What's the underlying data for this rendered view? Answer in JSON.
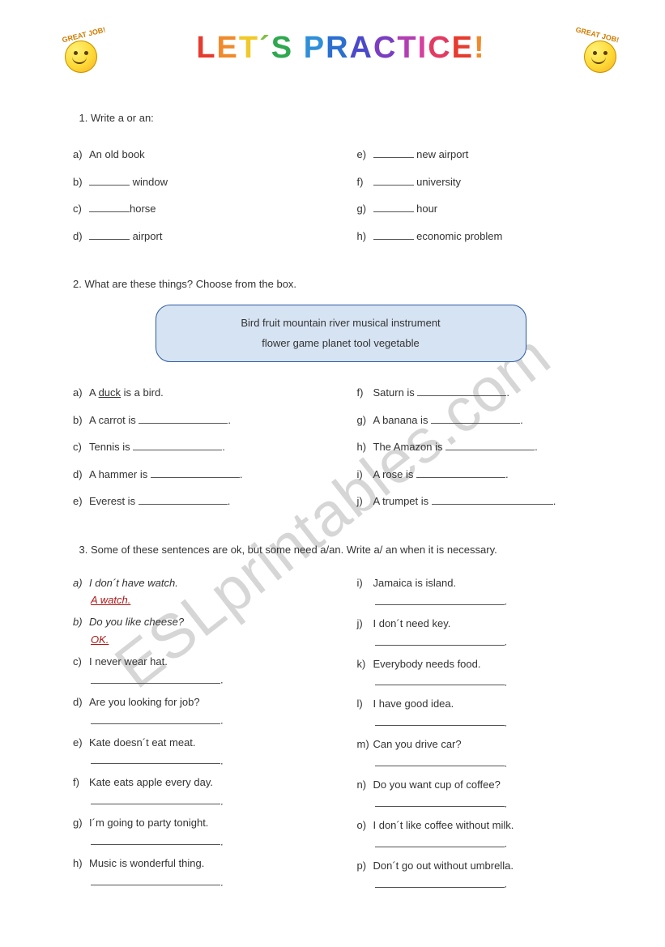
{
  "watermark": "ESLprintables.com",
  "header": {
    "badge_text": "GREAT JOB!",
    "title_chars": [
      {
        "t": "L",
        "c": "#e63b2e"
      },
      {
        "t": "E",
        "c": "#f08a2b"
      },
      {
        "t": "T",
        "c": "#f0c92b"
      },
      {
        "t": "´",
        "c": "#7fbf3f"
      },
      {
        "t": "S",
        "c": "#2fa84f"
      },
      {
        "t": " ",
        "c": "#2fa84f"
      },
      {
        "t": "P",
        "c": "#2f8fd8"
      },
      {
        "t": "R",
        "c": "#2b6fd0"
      },
      {
        "t": "A",
        "c": "#4b49c9"
      },
      {
        "t": "C",
        "c": "#7a3ec1"
      },
      {
        "t": "T",
        "c": "#b23fb2"
      },
      {
        "t": "I",
        "c": "#d63fa0"
      },
      {
        "t": "C",
        "c": "#e23b63"
      },
      {
        "t": "E",
        "c": "#e63b2e"
      },
      {
        "t": "!",
        "c": "#f08a2b"
      }
    ]
  },
  "ex1": {
    "instruction": "Write a or an:",
    "left": [
      {
        "l": "a)",
        "prefill": "An",
        "text": " old book",
        "has_prefill": true
      },
      {
        "l": "b)",
        "text": " window"
      },
      {
        "l": "c)",
        "text": "horse"
      },
      {
        "l": "d)",
        "text": " airport"
      }
    ],
    "right": [
      {
        "l": "e)",
        "text": " new airport"
      },
      {
        "l": "f)",
        "text": " university"
      },
      {
        "l": "g)",
        "text": " hour"
      },
      {
        "l": "h)",
        "text": " economic problem"
      }
    ]
  },
  "ex2": {
    "instruction": "2. What are these things?  Choose from the box.",
    "box_line1": "Bird    fruit    mountain   river    musical instrument",
    "box_line2": "flower    game    planet   tool   vegetable",
    "left": [
      {
        "l": "a)",
        "pre": "A ",
        "u": "duck",
        "post": "  is a bird."
      },
      {
        "l": "b)",
        "text": "A carrot is "
      },
      {
        "l": "c)",
        "text": "Tennis is "
      },
      {
        "l": "d)",
        "text": "A hammer is "
      },
      {
        "l": "e)",
        "text": "Everest is "
      }
    ],
    "right": [
      {
        "l": "f)",
        "text": "Saturn is "
      },
      {
        "l": "g)",
        "text": "A banana is "
      },
      {
        "l": "h)",
        "text": "The Amazon is "
      },
      {
        "l": "i)",
        "text": "A rose is "
      },
      {
        "l": "j)",
        "text": "A trumpet is "
      }
    ]
  },
  "ex3": {
    "instruction": "Some of these sentences are ok, but some need a/an. Write a/ an when it is necessary.",
    "left": [
      {
        "l": "a)",
        "q": "I don´t have watch.",
        "a": "A watch.",
        "italic": true
      },
      {
        "l": "b)",
        "q": "Do you like cheese?",
        "a": "OK.",
        "italic": true
      },
      {
        "l": "c)",
        "q": "I never wear hat."
      },
      {
        "l": "d)",
        "q": "Are you looking for job?"
      },
      {
        "l": "e)",
        "q": "Kate doesn´t eat meat."
      },
      {
        "l": "f)",
        "q": "Kate eats apple every day."
      },
      {
        "l": "g)",
        "q": "I´m going to party tonight."
      },
      {
        "l": "h)",
        "q": "Music is wonderful thing."
      }
    ],
    "right": [
      {
        "l": "i)",
        "q": "Jamaica is island."
      },
      {
        "l": "j)",
        "q": "I don´t need key."
      },
      {
        "l": "k)",
        "q": "Everybody needs food."
      },
      {
        "l": "l)",
        "q": "I have good idea."
      },
      {
        "l": "m)",
        "q": "Can you drive car?"
      },
      {
        "l": "n)",
        "q": "Do you want cup of coffee?"
      },
      {
        "l": "o)",
        "q": "I don´t like coffee without milk."
      },
      {
        "l": "p)",
        "q": "Don´t go out without umbrella."
      }
    ]
  }
}
